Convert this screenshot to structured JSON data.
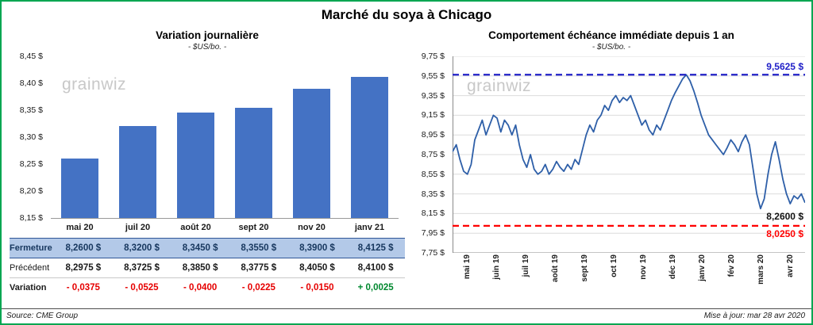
{
  "page": {
    "title": "Marché du soya à Chicago",
    "watermark": "grainwiz",
    "frame_border_color": "#00A651",
    "footer": {
      "source": "Source: CME Group",
      "updated": "Mise à jour: mar 28 avr 2020"
    }
  },
  "chart_data": [
    {
      "type": "bar",
      "title": "Variation journalière",
      "subtitle": "- $US/bo. -",
      "categories": [
        "mai 20",
        "juil 20",
        "août 20",
        "sept 20",
        "nov 20",
        "janv 21"
      ],
      "values": [
        8.26,
        8.32,
        8.345,
        8.355,
        8.39,
        8.4125
      ],
      "ylim": [
        8.15,
        8.45
      ],
      "yticks": [
        "8,45 $",
        "8,40 $",
        "8,35 $",
        "8,30 $",
        "8,25 $",
        "8,20 $",
        "8,15 $"
      ],
      "bar_color": "#4472C4",
      "grid": false,
      "table": {
        "header_bg": "#B3C9E8",
        "header_text": "#17375E",
        "header_border": "#2F5597",
        "rows": [
          {
            "key": "fermeture",
            "label": "Fermeture",
            "type": "highlight",
            "values": [
              "8,2600 $",
              "8,3200 $",
              "8,3450 $",
              "8,3550 $",
              "8,3900 $",
              "8,4125 $"
            ]
          },
          {
            "key": "precedent",
            "label": "Précédent",
            "type": "normal",
            "values": [
              "8,2975 $",
              "8,3725 $",
              "8,3850 $",
              "8,3775 $",
              "8,4050 $",
              "8,4100 $"
            ]
          },
          {
            "key": "variation",
            "label": "Variation",
            "type": "variation",
            "values": [
              "- 0,0375",
              "- 0,0525",
              "- 0,0400",
              "- 0,0225",
              "- 0,0150",
              "+ 0,0025"
            ],
            "value_colors": [
              "#E60000",
              "#E60000",
              "#E60000",
              "#E60000",
              "#E60000",
              "#00882F"
            ]
          }
        ]
      }
    },
    {
      "type": "line",
      "title": "Comportement échéance immédiate depuis 1 an",
      "subtitle": "- $US/bo. -",
      "x_labels": [
        "mai 19",
        "juin 19",
        "juil 19",
        "août 19",
        "sept 19",
        "oct 19",
        "nov 19",
        "déc 19",
        "janv 20",
        "fév 20",
        "mars 20",
        "avr 20"
      ],
      "values": [
        8.78,
        8.85,
        8.7,
        8.58,
        8.55,
        8.65,
        8.9,
        9.0,
        9.1,
        8.95,
        9.05,
        9.15,
        9.12,
        8.98,
        9.1,
        9.05,
        8.95,
        9.05,
        8.85,
        8.7,
        8.62,
        8.75,
        8.6,
        8.55,
        8.58,
        8.65,
        8.55,
        8.6,
        8.68,
        8.62,
        8.58,
        8.65,
        8.6,
        8.7,
        8.65,
        8.8,
        8.95,
        9.05,
        8.98,
        9.1,
        9.15,
        9.25,
        9.2,
        9.3,
        9.35,
        9.28,
        9.33,
        9.3,
        9.35,
        9.25,
        9.15,
        9.05,
        9.1,
        9.0,
        8.95,
        9.05,
        9.0,
        9.1,
        9.2,
        9.3,
        9.38,
        9.45,
        9.52,
        9.5625,
        9.5,
        9.4,
        9.28,
        9.15,
        9.05,
        8.95,
        8.9,
        8.85,
        8.8,
        8.75,
        8.82,
        8.9,
        8.85,
        8.78,
        8.88,
        8.95,
        8.85,
        8.6,
        8.35,
        8.2,
        8.3,
        8.55,
        8.75,
        8.88,
        8.7,
        8.5,
        8.35,
        8.25,
        8.33,
        8.3,
        8.35,
        8.26
      ],
      "ylim": [
        7.75,
        9.75
      ],
      "ytick_step": 0.2,
      "yticks": [
        "9,75 $",
        "9,55 $",
        "9,35 $",
        "9,15 $",
        "8,95 $",
        "8,75 $",
        "8,55 $",
        "8,35 $",
        "8,15 $",
        "7,95 $",
        "7,75 $"
      ],
      "line_color": "#2E5FA8",
      "grid": true,
      "high_line": {
        "value": 9.5625,
        "label": "9,5625 $",
        "color": "#2121C8"
      },
      "low_line": {
        "value": 8.025,
        "label": "8,0250 $",
        "color": "#FF0000"
      },
      "last_label": {
        "value": 8.26,
        "label": "8,2600 $",
        "color": "#111111"
      }
    }
  ]
}
